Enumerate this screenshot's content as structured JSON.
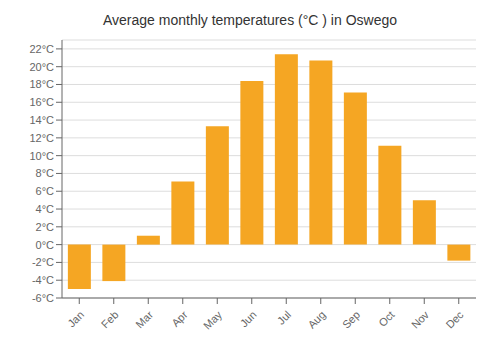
{
  "chart_data": {
    "type": "bar",
    "title": "Average monthly temperatures (°C ) in Oswego",
    "categories": [
      "Jan",
      "Feb",
      "Mar",
      "Apr",
      "May",
      "Jun",
      "Jul",
      "Aug",
      "Sep",
      "Oct",
      "Nov",
      "Dec"
    ],
    "values": [
      -5.0,
      -4.1,
      1.0,
      7.1,
      13.3,
      18.4,
      21.4,
      20.7,
      17.1,
      11.1,
      5.0,
      -1.8
    ],
    "color": "#F5A623",
    "ylim": [
      -6,
      23
    ],
    "yticks": [
      {
        "value": -6,
        "label": "-6°C"
      },
      {
        "value": -4,
        "label": "-4°C"
      },
      {
        "value": -2,
        "label": "-2°C"
      },
      {
        "value": 0,
        "label": "0°C"
      },
      {
        "value": 2,
        "label": "2°C"
      },
      {
        "value": 4,
        "label": "4°C"
      },
      {
        "value": 6,
        "label": "6°C"
      },
      {
        "value": 8,
        "label": "8°C"
      },
      {
        "value": 10,
        "label": "10°C"
      },
      {
        "value": 12,
        "label": "12°C"
      },
      {
        "value": 14,
        "label": "14°C"
      },
      {
        "value": 16,
        "label": "16°C"
      },
      {
        "value": 18,
        "label": "18°C"
      },
      {
        "value": 20,
        "label": "20°C"
      },
      {
        "value": 22,
        "label": "22°C"
      }
    ],
    "grid": true
  }
}
